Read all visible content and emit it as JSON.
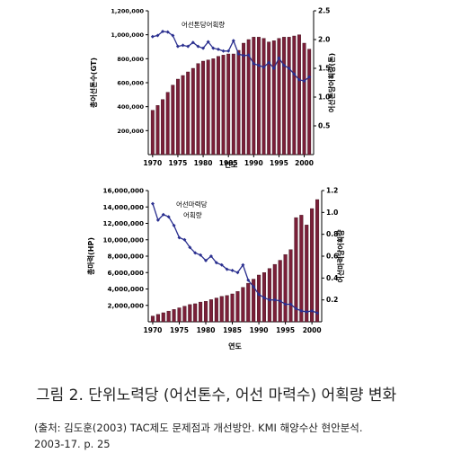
{
  "chart_data": [
    {
      "type": "bar+line",
      "title": "",
      "xlabel": "연도",
      "ylabel_left": "총어선톤수(GT)",
      "ylabel_right": "어선톤당어획량(톤)",
      "legend_label": "어선톤당어획량",
      "y_left_range": [
        0,
        1200000
      ],
      "y_left_ticks": [
        "200,000",
        "400,000",
        "600,000",
        "800,000",
        "1,000,000",
        "1,200,000"
      ],
      "y_right_range": [
        0,
        2.5
      ],
      "y_right_ticks": [
        "0.5",
        "1.0",
        "1.5",
        "2.0",
        "2.5"
      ],
      "x_range": [
        1970,
        2001
      ],
      "x_ticks": [
        "1970",
        "1975",
        "1980",
        "1985",
        "1990",
        "1995",
        "2000"
      ],
      "series": [
        {
          "kind": "bar",
          "x": [
            1970,
            1971,
            1972,
            1973,
            1974,
            1975,
            1976,
            1977,
            1978,
            1979,
            1980,
            1981,
            1982,
            1983,
            1984,
            1985,
            1986,
            1987,
            1988,
            1989,
            1990,
            1991,
            1992,
            1993,
            1994,
            1995,
            1996,
            1997,
            1998,
            1999,
            2000,
            2001
          ],
          "values": [
            370000,
            410000,
            460000,
            520000,
            580000,
            630000,
            660000,
            690000,
            720000,
            760000,
            780000,
            790000,
            800000,
            820000,
            830000,
            840000,
            840000,
            870000,
            930000,
            960000,
            980000,
            980000,
            970000,
            940000,
            950000,
            970000,
            980000,
            980000,
            990000,
            1000000,
            930000,
            880000
          ]
        },
        {
          "kind": "line",
          "x": [
            1970,
            1971,
            1972,
            1973,
            1974,
            1975,
            1976,
            1977,
            1978,
            1979,
            1980,
            1981,
            1982,
            1983,
            1984,
            1985,
            1986,
            1987,
            1988,
            1989,
            1990,
            1991,
            1992,
            1993,
            1994,
            1995,
            1996,
            1997,
            1998,
            1999,
            2000,
            2001
          ],
          "values": [
            2.05,
            2.07,
            2.14,
            2.13,
            2.07,
            1.88,
            1.9,
            1.88,
            1.95,
            1.88,
            1.85,
            1.96,
            1.85,
            1.83,
            1.8,
            1.8,
            1.98,
            1.75,
            1.72,
            1.73,
            1.58,
            1.55,
            1.52,
            1.6,
            1.5,
            1.68,
            1.55,
            1.5,
            1.4,
            1.3,
            1.28,
            1.35
          ]
        }
      ]
    },
    {
      "type": "bar+line",
      "title": "",
      "xlabel": "연도",
      "ylabel_left": "총마력(HP)",
      "ylabel_right": "어선마력당어획량",
      "legend_label": "어선마력당 어획량",
      "y_left_range": [
        0,
        16000000
      ],
      "y_left_ticks": [
        "2,000,000",
        "4,000,000",
        "6,000,000",
        "8,000,000",
        "10,000,000",
        "12,000,000",
        "14,000,000",
        "16,000,000"
      ],
      "y_right_range": [
        0,
        1.2
      ],
      "y_right_ticks": [
        "0.2",
        "0.4",
        "0.6",
        "0.8",
        "1.0",
        "1.2"
      ],
      "x_range": [
        1970,
        2001
      ],
      "x_ticks": [
        "1970",
        "1975",
        "1980",
        "1985",
        "1990",
        "1995",
        "2000"
      ],
      "series": [
        {
          "kind": "bar",
          "x": [
            1970,
            1971,
            1972,
            1973,
            1974,
            1975,
            1976,
            1977,
            1978,
            1979,
            1980,
            1981,
            1982,
            1983,
            1984,
            1985,
            1986,
            1987,
            1988,
            1989,
            1990,
            1991,
            1992,
            1993,
            1994,
            1995,
            1996,
            1997,
            1998,
            1999,
            2000,
            2001
          ],
          "values": [
            700000,
            900000,
            1100000,
            1300000,
            1500000,
            1700000,
            1900000,
            2100000,
            2200000,
            2400000,
            2500000,
            2700000,
            2900000,
            3100000,
            3200000,
            3400000,
            3700000,
            4200000,
            4700000,
            5200000,
            5700000,
            6000000,
            6500000,
            7000000,
            7500000,
            8200000,
            8800000,
            12700000,
            13000000,
            11800000,
            13800000,
            14900000
          ]
        },
        {
          "kind": "line",
          "x": [
            1970,
            1971,
            1972,
            1973,
            1974,
            1975,
            1976,
            1977,
            1978,
            1979,
            1980,
            1981,
            1982,
            1983,
            1984,
            1985,
            1986,
            1987,
            1988,
            1989,
            1990,
            1991,
            1992,
            1993,
            1994,
            1995,
            1996,
            1997,
            1998,
            1999,
            2000,
            2001
          ],
          "values": [
            1.08,
            0.93,
            0.98,
            0.96,
            0.88,
            0.77,
            0.75,
            0.68,
            0.63,
            0.61,
            0.56,
            0.6,
            0.54,
            0.52,
            0.48,
            0.47,
            0.45,
            0.52,
            0.38,
            0.32,
            0.25,
            0.22,
            0.2,
            0.2,
            0.19,
            0.16,
            0.16,
            0.12,
            0.1,
            0.09,
            0.1,
            0.08
          ]
        }
      ]
    }
  ],
  "caption": "그림 2. 단위노력당 (어선톤수, 어선 마력수) 어획량 변화",
  "source_line1": "(출처:  김도훈(2003) TAC제도 문제점과 개선방안. KMI 해양수산 현안분석.",
  "source_line2": "2003-17. p. 25",
  "colors": {
    "bar_fill": "#7a1f38",
    "bar_stroke": "#3a0c18",
    "line": "#2a2f8f",
    "axis": "#000000"
  }
}
